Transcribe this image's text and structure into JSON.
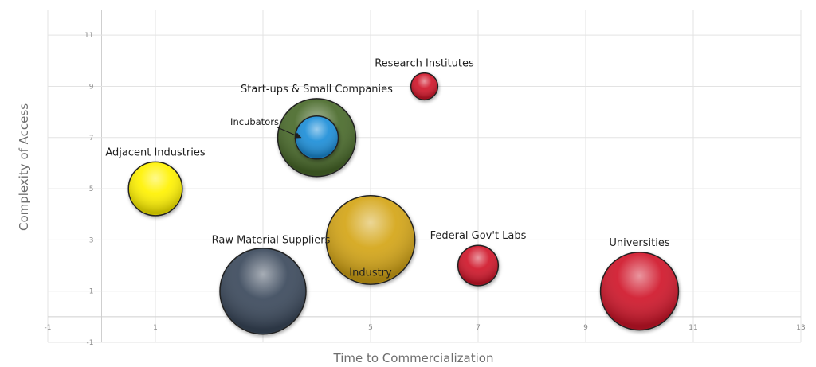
{
  "chart_data": {
    "type": "scatter",
    "subtype": "bubble",
    "xlabel": "Time to Commercialization",
    "ylabel": "Complexity of Access",
    "xlim": [
      -1,
      13
    ],
    "ylim": [
      -1,
      12
    ],
    "xticks": [
      -1,
      1,
      3,
      5,
      7,
      9,
      11,
      13
    ],
    "yticks": [
      -1,
      1,
      3,
      5,
      7,
      9,
      11
    ],
    "grid": true,
    "legend": "none",
    "series": [
      {
        "name": "Research Institutes",
        "x": 6,
        "y": 9,
        "size": 0.5,
        "color": "#d0192c",
        "label_pos": "above"
      },
      {
        "name": "Start-ups & Small Companies",
        "x": 4,
        "y": 7,
        "size": 1.45,
        "color": "#4a6a2c",
        "label_pos": "above"
      },
      {
        "name": "Incubators",
        "x": 4,
        "y": 7,
        "size": 0.8,
        "color": "#1a8ed8",
        "label_pos": "callout-left"
      },
      {
        "name": "Adjacent Industries",
        "x": 1,
        "y": 5,
        "size": 1.0,
        "color": "#fff200",
        "label_pos": "above"
      },
      {
        "name": "Industry",
        "x": 5,
        "y": 3,
        "size": 1.65,
        "color": "#d4a513",
        "label_pos": "below"
      },
      {
        "name": "Raw Material Suppliers",
        "x": 3,
        "y": 1,
        "size": 1.6,
        "color": "#3a4a5c",
        "label_pos": "above-left"
      },
      {
        "name": "Federal Gov't Labs",
        "x": 7,
        "y": 2,
        "size": 0.75,
        "color": "#d0192c",
        "label_pos": "above"
      },
      {
        "name": "Universities",
        "x": 10,
        "y": 1,
        "size": 1.45,
        "color": "#d0192c",
        "label_pos": "above"
      }
    ]
  }
}
